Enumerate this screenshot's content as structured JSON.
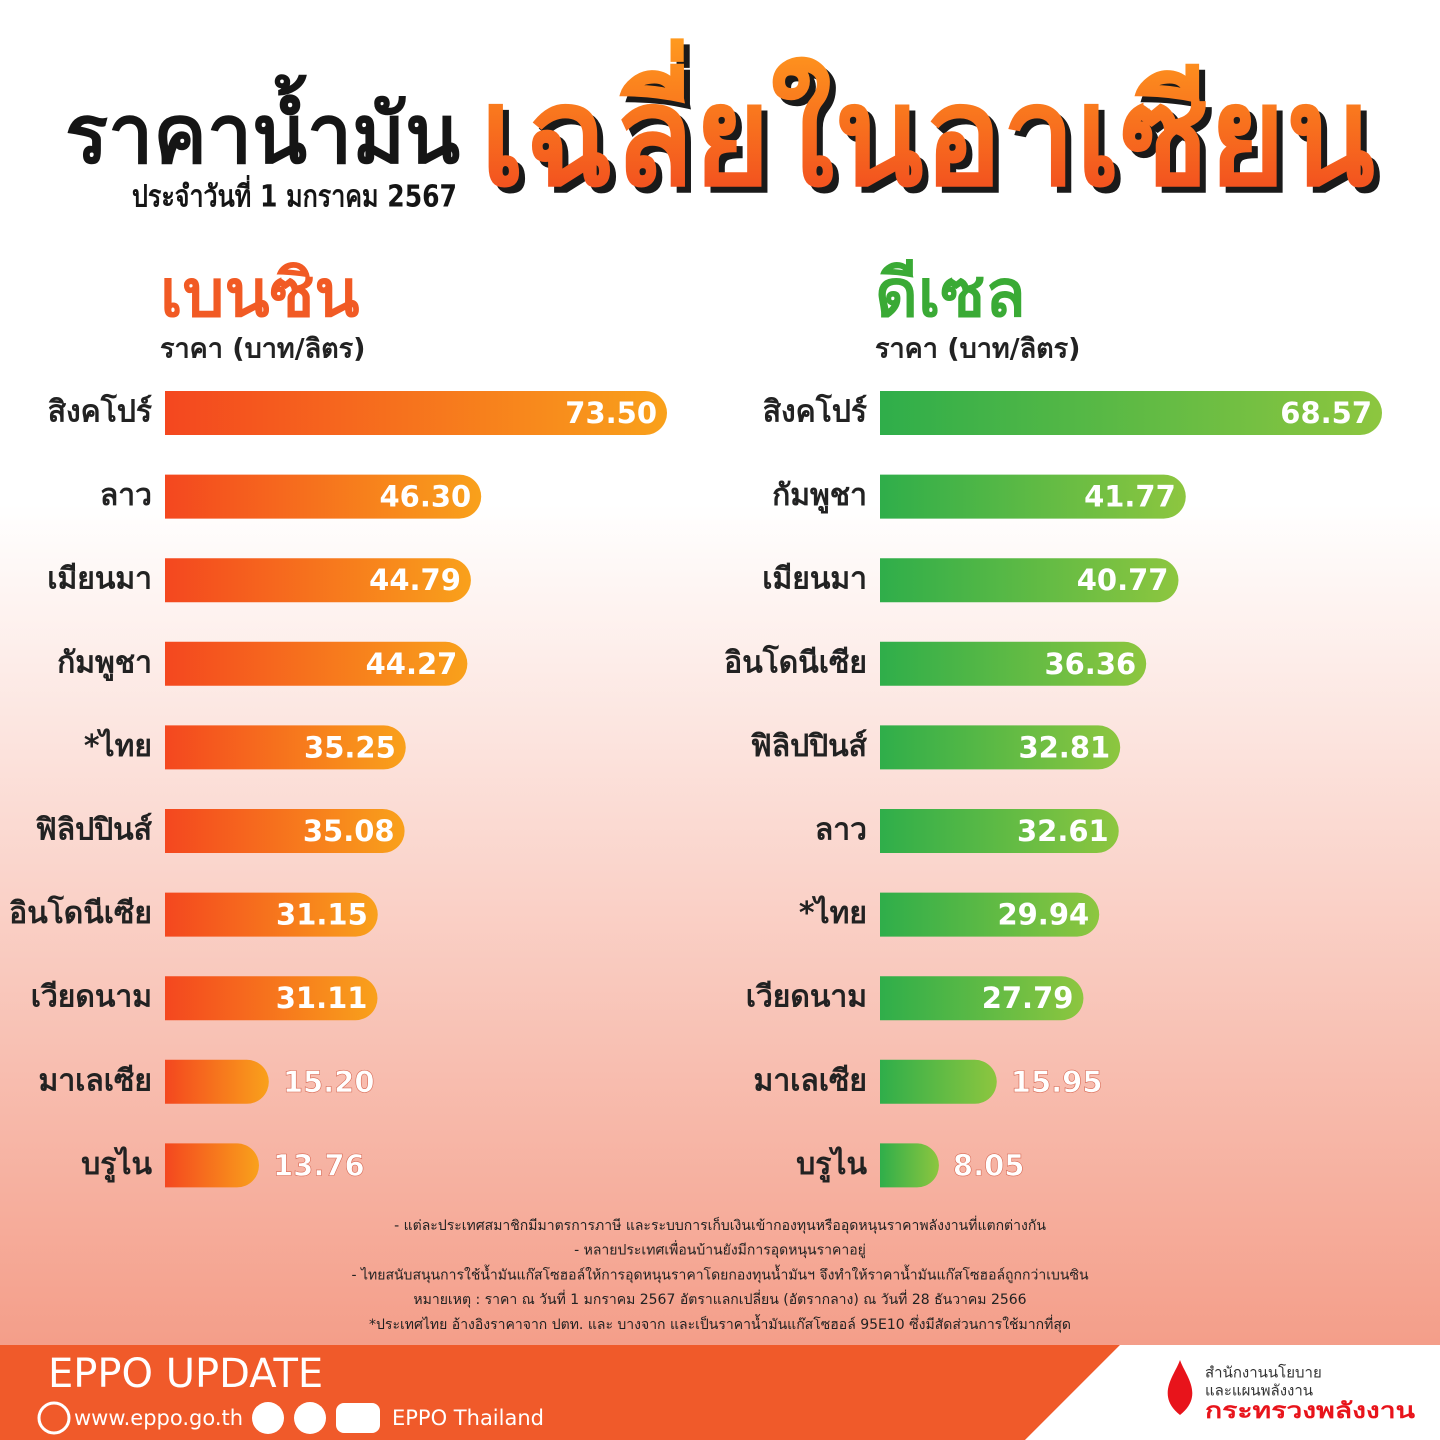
{
  "header": {
    "title": "ราคาน้ำมัน",
    "headline": "เฉลี่ยในอาเซียน",
    "date": "ประจำวันที่ 1 มกราคม 2567"
  },
  "chart_data": [
    {
      "type": "bar",
      "orientation": "horizontal",
      "title": "เบนซิน",
      "subtitle": "ราคา (บาท/ลิตร)",
      "title_color": "#f15a24",
      "categories": [
        "สิงคโปร์",
        "ลาว",
        "เมียนมา",
        "กัมพูชา",
        "*ไทย",
        "ฟิลิปปินส์",
        "อินโดนีเซีย",
        "เวียดนาม",
        "มาเลเซีย",
        "บรูไน"
      ],
      "values": [
        73.5,
        46.3,
        44.79,
        44.27,
        35.25,
        35.08,
        31.15,
        31.11,
        15.2,
        13.76
      ],
      "value_labels": [
        "73.50",
        "46.30",
        "44.79",
        "44.27",
        "35.25",
        "35.08",
        "31.15",
        "31.11",
        "15.20",
        "13.76"
      ],
      "colors": [
        "#f4471f",
        "#f9a11b"
      ],
      "label_colors": [
        "#222",
        "#222",
        "#222",
        "#222",
        "#e8141b",
        "#222",
        "#222",
        "#222",
        "#222",
        "#222"
      ]
    },
    {
      "type": "bar",
      "orientation": "horizontal",
      "title": "ดีเซล",
      "subtitle": "ราคา (บาท/ลิตร)",
      "title_color": "#3aaa35",
      "categories": [
        "สิงคโปร์",
        "กัมพูชา",
        "เมียนมา",
        "อินโดนีเซีย",
        "ฟิลิปปินส์",
        "ลาว",
        "*ไทย",
        "เวียดนาม",
        "มาเลเซีย",
        "บรูไน"
      ],
      "values": [
        68.57,
        41.77,
        40.77,
        36.36,
        32.81,
        32.61,
        29.94,
        27.79,
        15.95,
        8.05
      ],
      "value_labels": [
        "68.57",
        "41.77",
        "40.77",
        "36.36",
        "32.81",
        "32.61",
        "29.94",
        "27.79",
        "15.95",
        "8.05"
      ],
      "colors": [
        "#2fae4a",
        "#8dc63f"
      ],
      "label_colors": [
        "#222",
        "#222",
        "#222",
        "#222",
        "#222",
        "#222",
        "#e8141b",
        "#222",
        "#222",
        "#222"
      ]
    }
  ],
  "notes": [
    "- แต่ละประเทศสมาชิกมีมาตรการภาษี และระบบการเก็บเงินเข้ากองทุนหรืออุดหนุนราคาพลังงานที่แตกต่างกัน",
    "- หลายประเทศเพื่อนบ้านยังมีการอุดหนุนราคาอยู่",
    "- ไทยสนับสนุนการใช้น้ำมันแก๊สโซฮอล์ให้การอุดหนุนราคาโดยกองทุนน้ำมันฯ จึงทำให้ราคาน้ำมันแก๊สโซฮอล์ถูกกว่าเบนซิน",
    "หมายเหตุ :   ราคา ณ วันที่ 1 มกราคม 2567 อัตราแลกเปลี่ยน (อัตรากลาง) ณ วันที่ 28 ธันวาคม 2566",
    "*ประเทศไทย อ้างอิงราคาจาก ปตท. และ บางจาก และเป็นราคาน้ำมันแก๊สโซฮอล์ 95E10 ซึ่งมีสัดส่วนการใช้มากที่สุด"
  ],
  "footer": {
    "brand": "EPPO UPDATE",
    "website": "www.eppo.go.th",
    "social": "EPPO Thailand",
    "org": [
      "สำนักงานนโยบาย",
      "และแผนพลังงาน",
      "กระทรวงพลังงาน"
    ]
  }
}
